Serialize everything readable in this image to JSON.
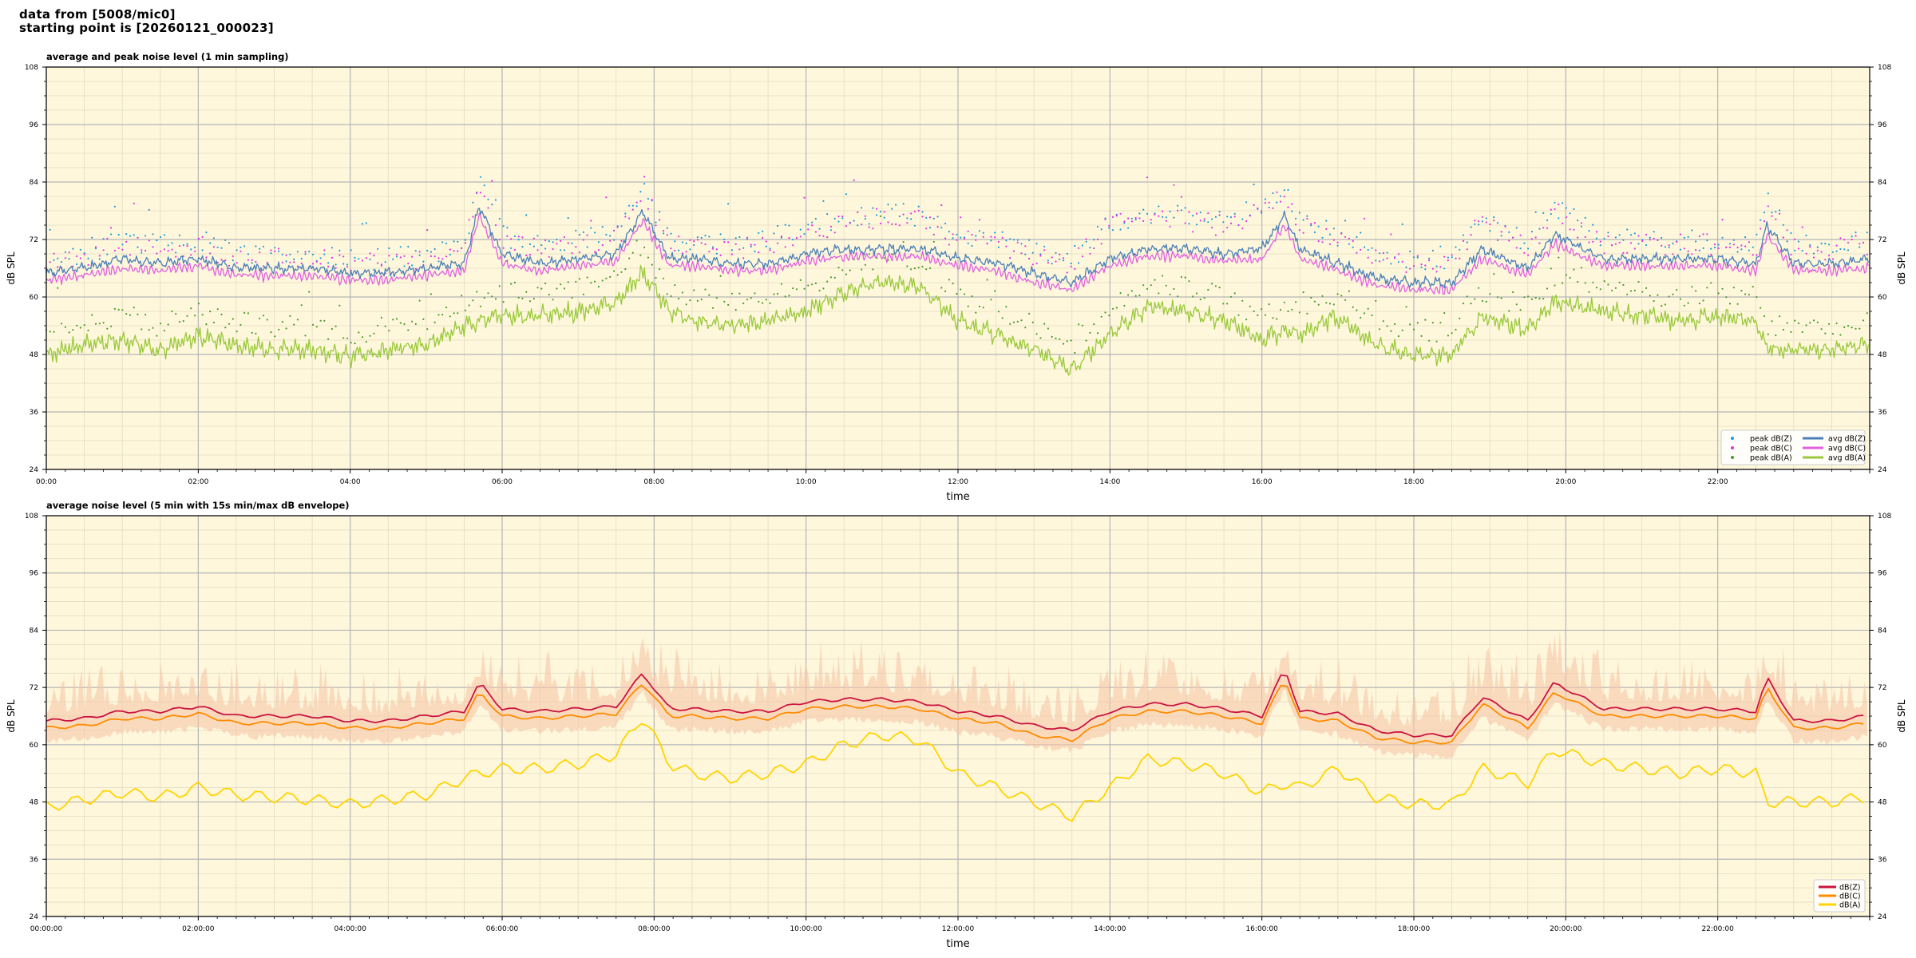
{
  "header": {
    "line1": "data from [5008/mic0]",
    "line2": "starting point is [20260121_000023]"
  },
  "colors": {
    "panel_bg": "#fef7dc",
    "peak_z": "#1f9bd6",
    "peak_c": "#e62ee6",
    "peak_a": "#4a9a2e",
    "avg_z": "#4a7fb8",
    "avg_c": "#e060e0",
    "avg_a": "#99c93a",
    "env_fill": "#f6c6a8",
    "line_z": "#cc1440",
    "line_c": "#ff8c00",
    "line_a": "#ffd400"
  },
  "chart_data": [
    {
      "type": "line",
      "title": "average and peak noise level (1 min sampling)",
      "xlabel": "time",
      "ylabel": "dB SPL",
      "ylim": [
        24,
        108
      ],
      "y_ticks": [
        24,
        36,
        48,
        60,
        72,
        84,
        96,
        108
      ],
      "xlim_hours": [
        0,
        24
      ],
      "x_ticks": [
        "00:00",
        "02:00",
        "04:00",
        "06:00",
        "08:00",
        "10:00",
        "12:00",
        "14:00",
        "16:00",
        "18:00",
        "20:00",
        "22:00"
      ],
      "grid": true,
      "legend_position": "lower-right",
      "legend": [
        "peak dB(Z)",
        "peak dB(C)",
        "peak dB(A)",
        "avg dB(Z)",
        "avg dB(C)",
        "avg dB(A)"
      ],
      "x_hours": [
        0,
        0.5,
        1,
        1.5,
        2,
        2.5,
        3,
        3.5,
        4,
        4.5,
        5,
        5.5,
        5.7,
        6,
        6.5,
        7,
        7.5,
        7.85,
        8.2,
        8.5,
        9,
        9.5,
        10,
        10.5,
        11,
        11.5,
        12,
        12.5,
        13,
        13.5,
        14,
        14.5,
        15,
        15.5,
        16,
        16.3,
        16.5,
        17,
        17.5,
        18,
        18.5,
        18.9,
        19.5,
        19.85,
        20.5,
        21,
        21.5,
        22,
        22.5,
        22.65,
        23,
        23.5,
        23.95
      ],
      "series": [
        {
          "name": "avg dB(Z)",
          "values": [
            65,
            66,
            68,
            67,
            68,
            66,
            66,
            66,
            65,
            65,
            66,
            67,
            79,
            69,
            67,
            68,
            69,
            78,
            68,
            68,
            67,
            67,
            69,
            70,
            70,
            70,
            68,
            67,
            65,
            63,
            68,
            70,
            70,
            69,
            70,
            77,
            70,
            67,
            64,
            63,
            63,
            70,
            66,
            73,
            68,
            68,
            68,
            68,
            67,
            75,
            67,
            67,
            68
          ]
        },
        {
          "name": "avg dB(C)",
          "values": [
            63.5,
            64.5,
            66,
            65.5,
            66.5,
            64.5,
            64.5,
            64.5,
            63.5,
            63.5,
            64.5,
            65.5,
            77,
            67,
            65.5,
            66.5,
            67.5,
            76,
            66.5,
            66.5,
            65.5,
            65.5,
            67.5,
            68.5,
            68.5,
            68.5,
            66.5,
            65.5,
            63,
            61.5,
            66.5,
            68.5,
            68.5,
            67.5,
            68,
            75,
            68,
            65.5,
            62.5,
            61.5,
            61.5,
            68,
            64.5,
            71,
            66.5,
            66.5,
            66.5,
            66.5,
            65.5,
            73,
            65.5,
            65.5,
            66
          ]
        },
        {
          "name": "avg dB(A)",
          "values": [
            48,
            50,
            51,
            49,
            52,
            50,
            49,
            49,
            47.5,
            49,
            50,
            54,
            55,
            56,
            56,
            57,
            59,
            65,
            57,
            55,
            54,
            55,
            57,
            61,
            63,
            62,
            55,
            52,
            49,
            45,
            52,
            58,
            57,
            55,
            51,
            53,
            52,
            56,
            50,
            48,
            48,
            56,
            53,
            59,
            57,
            56,
            55,
            56,
            55,
            49,
            49,
            49,
            50
          ]
        },
        {
          "name": "peak dB(Z)",
          "values": [
            67,
            68,
            71,
            70,
            71,
            68,
            68,
            68,
            67,
            67,
            68,
            70,
            83,
            72,
            70,
            71,
            72,
            82,
            71,
            71,
            70,
            71,
            74,
            75,
            77,
            76,
            72,
            71,
            69,
            67,
            75,
            76,
            76,
            75,
            78,
            82,
            75,
            72,
            68,
            67,
            67,
            76,
            70,
            78,
            71,
            71,
            71,
            71,
            70,
            80,
            70,
            70,
            71
          ]
        },
        {
          "name": "peak dB(C)",
          "values": [
            66,
            67,
            70,
            69,
            70,
            67,
            67,
            67,
            66,
            66,
            67,
            69,
            82,
            71,
            69,
            70,
            71,
            81,
            70,
            70,
            69,
            70,
            73,
            74,
            76,
            75,
            71,
            70,
            68,
            66,
            74,
            75,
            75,
            74,
            77,
            81,
            74,
            71,
            67,
            66,
            66,
            75,
            69,
            77,
            70,
            70,
            70,
            70,
            69,
            79,
            69,
            69,
            70
          ]
        },
        {
          "name": "peak dB(A)",
          "values": [
            52,
            54,
            55,
            53,
            56,
            54,
            53,
            53,
            51,
            53,
            54,
            58,
            59,
            60,
            60,
            61,
            63,
            68,
            61,
            59,
            58,
            59,
            61,
            65,
            67,
            66,
            59,
            56,
            53,
            49,
            56,
            62,
            61,
            59,
            55,
            57,
            56,
            60,
            54,
            52,
            52,
            60,
            57,
            63,
            61,
            60,
            59,
            60,
            59,
            53,
            53,
            53,
            54
          ]
        }
      ]
    },
    {
      "type": "line",
      "title": "average noise level (5 min with 15s min/max dB envelope)",
      "xlabel": "time",
      "ylabel": "dB SPL",
      "ylim": [
        24,
        108
      ],
      "y_ticks": [
        24,
        36,
        48,
        60,
        72,
        84,
        96,
        108
      ],
      "xlim_hours": [
        0,
        24
      ],
      "x_ticks": [
        "00:00:00",
        "02:00:00",
        "04:00:00",
        "06:00:00",
        "08:00:00",
        "10:00:00",
        "12:00:00",
        "14:00:00",
        "16:00:00",
        "18:00:00",
        "20:00:00",
        "22:00:00"
      ],
      "grid": true,
      "legend_position": "lower-right",
      "legend": [
        "dB(Z)",
        "dB(C)",
        "dB(A)"
      ],
      "x_hours": [
        0,
        0.5,
        1,
        1.5,
        2,
        2.5,
        3,
        3.5,
        4,
        4.5,
        5,
        5.5,
        5.7,
        6,
        6.5,
        7,
        7.5,
        7.85,
        8.2,
        8.5,
        9,
        9.5,
        10,
        10.5,
        11,
        11.5,
        12,
        12.5,
        13,
        13.5,
        14,
        14.5,
        15,
        15.5,
        16,
        16.3,
        16.5,
        17,
        17.5,
        18,
        18.5,
        18.9,
        19.5,
        19.85,
        20.5,
        21,
        21.5,
        22,
        22.5,
        22.65,
        23,
        23.5,
        23.95
      ],
      "series": [
        {
          "name": "dB(Z)",
          "values": [
            65,
            65.5,
            67,
            67,
            68,
            66,
            66,
            66,
            65,
            65,
            66,
            67,
            73,
            67.5,
            67,
            67.5,
            68,
            75,
            67.5,
            67.5,
            67,
            67,
            69,
            69.5,
            69.5,
            69,
            67,
            66,
            64,
            63,
            67,
            68.5,
            68.5,
            67.5,
            66,
            76,
            67,
            66.5,
            63,
            62,
            62,
            70,
            65,
            73,
            67.5,
            67.5,
            67.5,
            67.5,
            67,
            74,
            65,
            65,
            66
          ]
        },
        {
          "name": "dB(C)",
          "values": [
            63.5,
            64,
            65.5,
            65.5,
            66.5,
            64.5,
            64.5,
            64.5,
            63.5,
            63.5,
            64.5,
            65.5,
            71,
            66,
            65.5,
            66,
            66.5,
            73,
            66,
            66,
            65.5,
            65.5,
            67.5,
            68,
            68,
            67.5,
            65.5,
            64.5,
            62,
            61,
            65.5,
            67,
            67,
            66,
            64.5,
            74,
            65.5,
            65,
            61.5,
            60.5,
            60.5,
            68.5,
            63.5,
            71,
            66,
            66,
            66,
            66,
            65.5,
            72,
            63.5,
            63.5,
            64.5
          ]
        },
        {
          "name": "dB(A)",
          "values": [
            47,
            48.5,
            50,
            49,
            51,
            49.5,
            49,
            48.5,
            47.5,
            48.5,
            49.5,
            53,
            54,
            55,
            55,
            56,
            58,
            66,
            56,
            54,
            53,
            54,
            56,
            60,
            62,
            61,
            54,
            51,
            48,
            45,
            51,
            57,
            56,
            54,
            50,
            52,
            51,
            55,
            49,
            47.5,
            47.5,
            55,
            52,
            59,
            56,
            55,
            54,
            55,
            54,
            48,
            48,
            48,
            49
          ]
        }
      ]
    }
  ]
}
